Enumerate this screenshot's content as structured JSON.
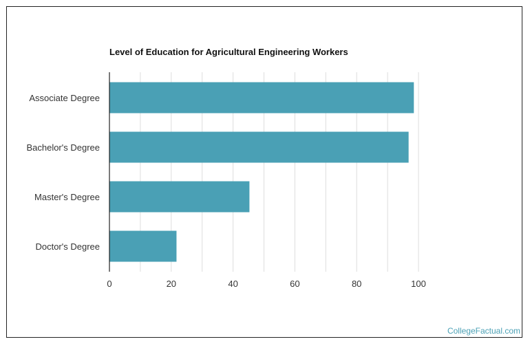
{
  "chart_data": {
    "type": "bar",
    "orientation": "horizontal",
    "title": "Level of Education for Agricultural Engineering Workers",
    "categories": [
      "Associate Degree",
      "Bachelor's Degree",
      "Master's Degree",
      "Doctor's Degree"
    ],
    "values": [
      98.5,
      96.8,
      45.3,
      21.7
    ],
    "xlim": [
      0,
      100
    ],
    "xticks": [
      "0",
      "20",
      "40",
      "60",
      "80",
      "100"
    ],
    "grid": true,
    "bar_color": "#4aa0b5",
    "gridline_color": "#dddddd"
  },
  "watermark": "CollegeFactual.com"
}
